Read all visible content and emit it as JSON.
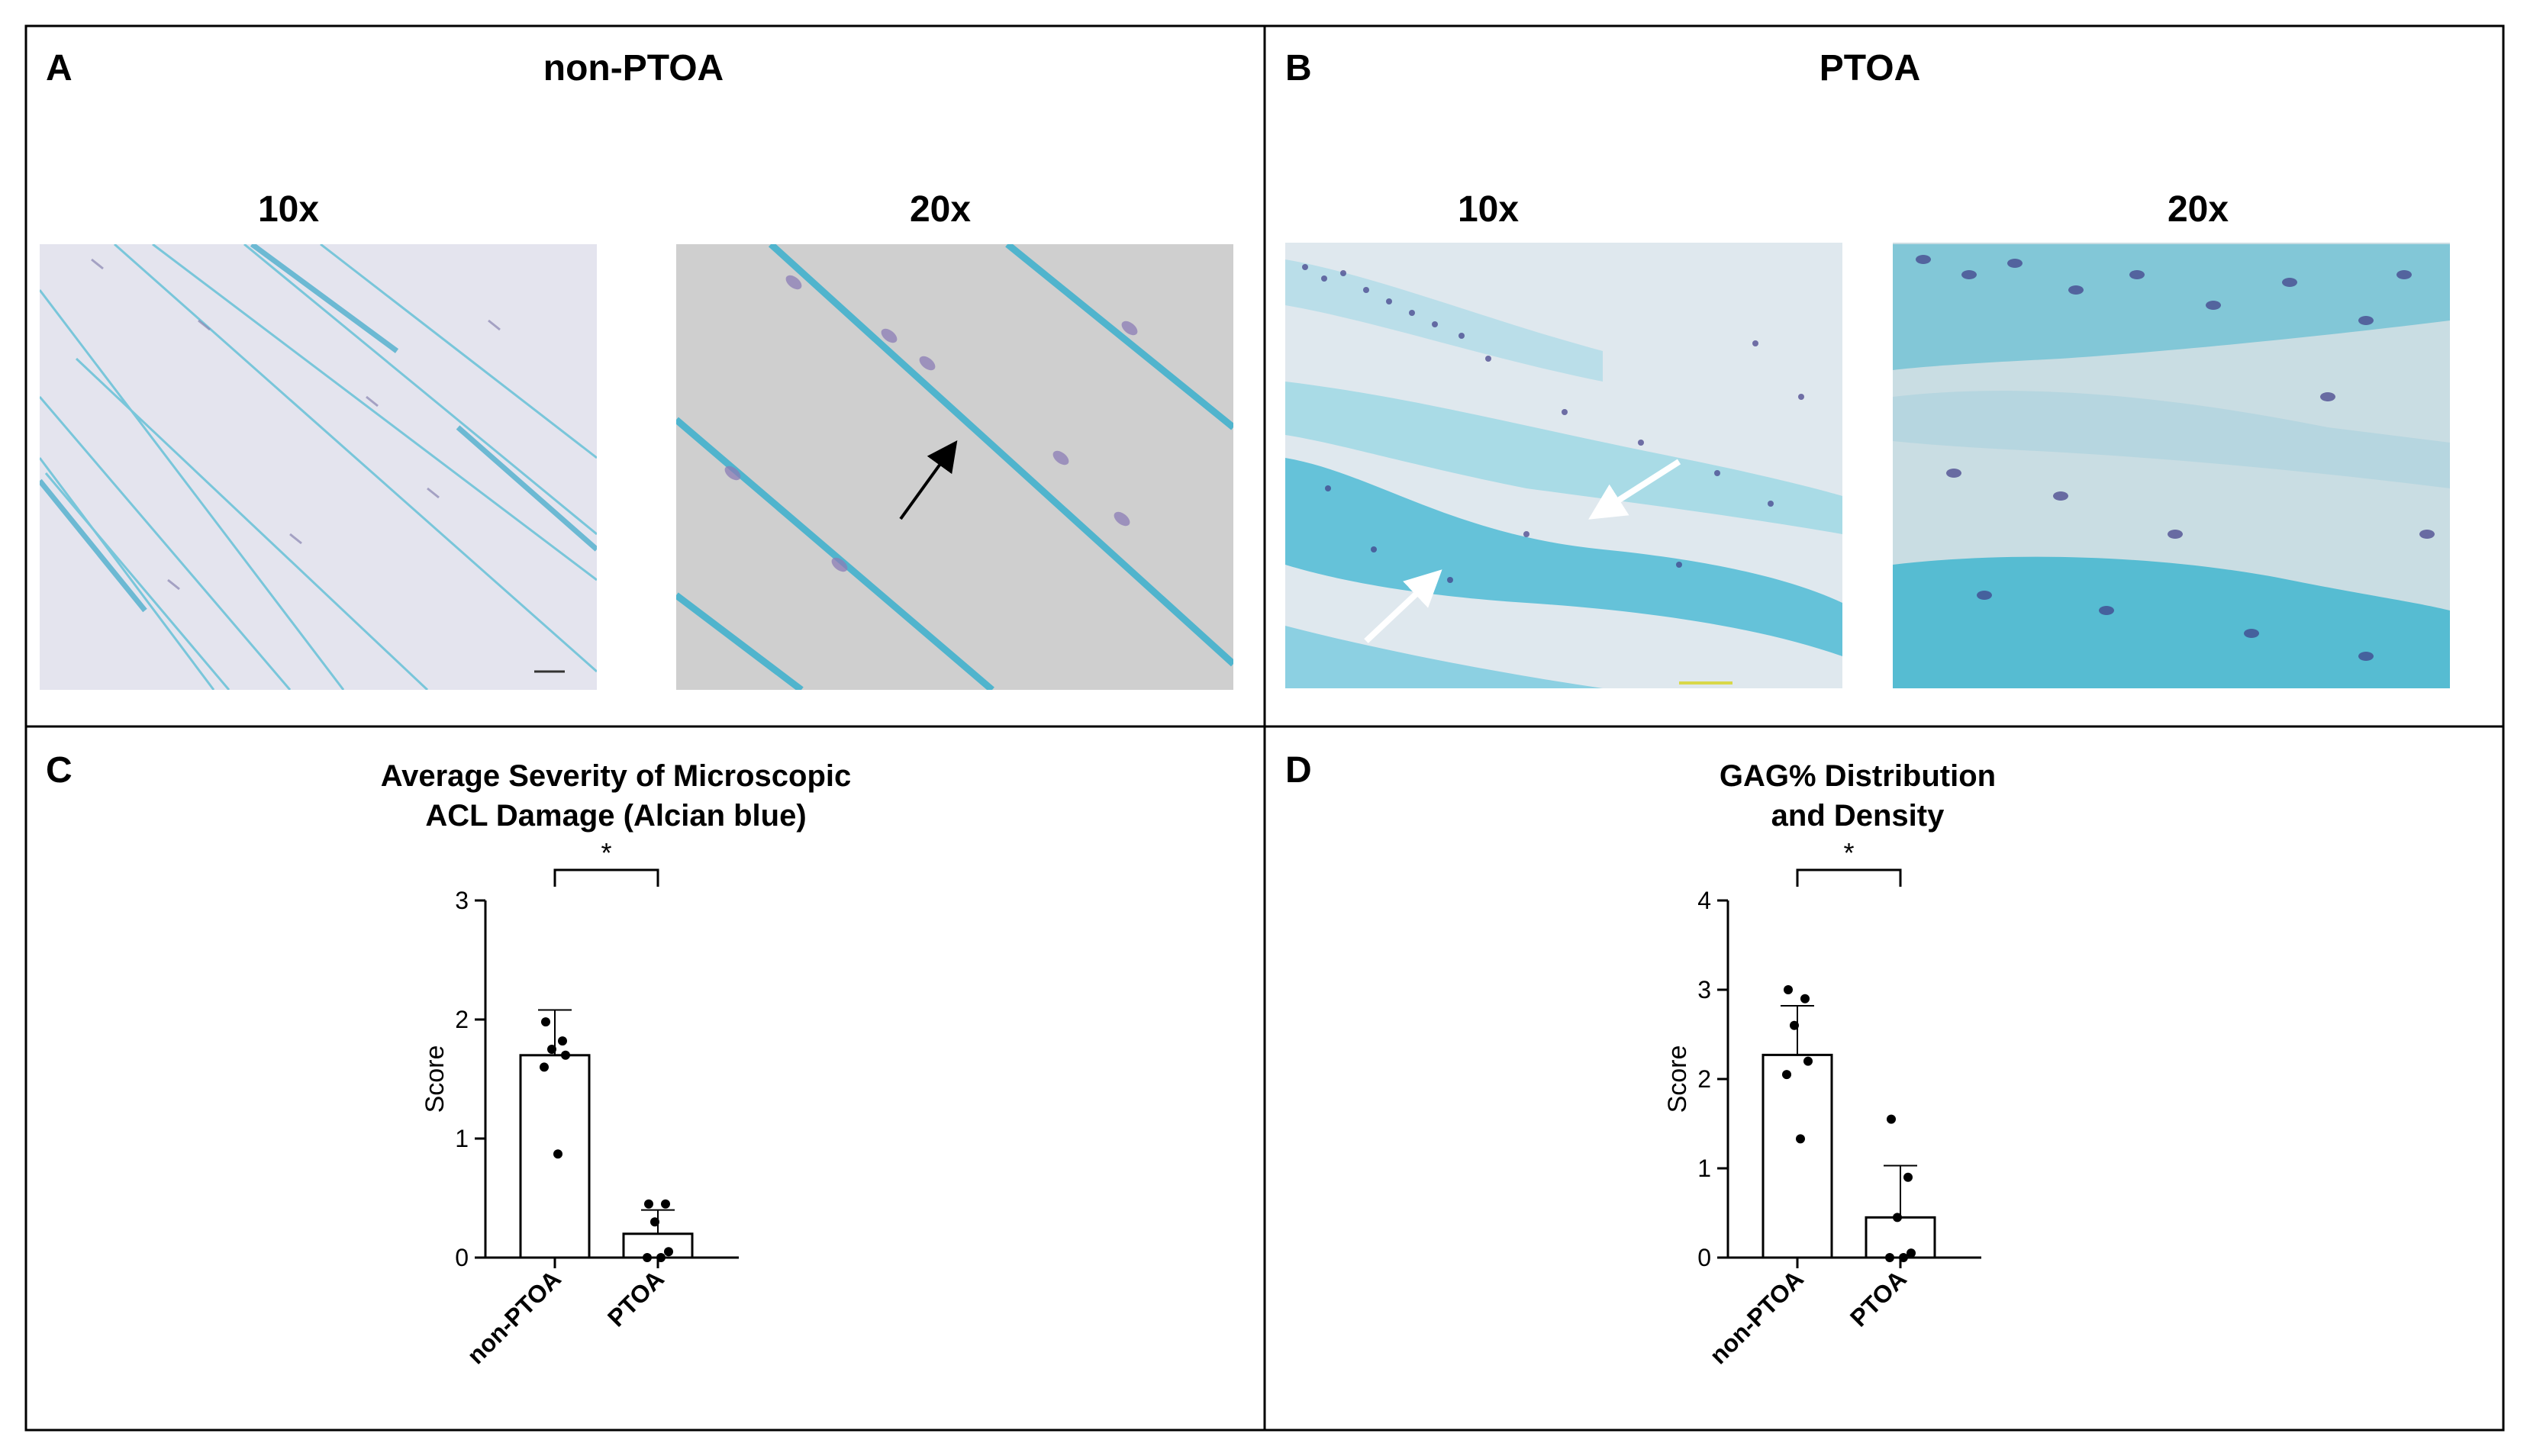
{
  "panels": {
    "A": {
      "letter": "A",
      "title": "non-PTOA",
      "mag_left": "10x",
      "mag_right": "20x"
    },
    "B": {
      "letter": "B",
      "title": "PTOA",
      "mag_left": "10x",
      "mag_right": "20x"
    },
    "C": {
      "letter": "C"
    },
    "D": {
      "letter": "D"
    }
  },
  "colors": {
    "stain_light": "#e6e6f0",
    "alcian_blue": "#4db8d2",
    "nuclei": "#4a3a8c",
    "border": "#000000"
  },
  "chart_data": [
    {
      "type": "bar",
      "title_lines": [
        "Average Severity of Microscopic",
        "ACL Damage (Alcian blue)"
      ],
      "xlabel": "",
      "ylabel": "Score",
      "categories": [
        "non-PTOA",
        "PTOA"
      ],
      "values": [
        1.7,
        0.2
      ],
      "error_sd": [
        0.38,
        0.2
      ],
      "points": [
        [
          1.98,
          1.82,
          1.75,
          1.7,
          1.6,
          0.87
        ],
        [
          0.45,
          0.45,
          0.3,
          0.05,
          0.0,
          0.0
        ]
      ],
      "ylim": [
        0,
        3
      ],
      "yticks": [
        0,
        1,
        2,
        3
      ],
      "significance": "*",
      "grid": false
    },
    {
      "type": "bar",
      "title_lines": [
        "GAG% Distribution",
        "and Density"
      ],
      "xlabel": "",
      "ylabel": "Score",
      "categories": [
        "non-PTOA",
        "PTOA"
      ],
      "values": [
        2.27,
        0.45
      ],
      "error_sd": [
        0.55,
        0.58
      ],
      "points": [
        [
          3.0,
          2.9,
          2.6,
          2.2,
          2.05,
          1.33
        ],
        [
          1.55,
          0.9,
          0.45,
          0.05,
          0.0,
          0.0
        ]
      ],
      "ylim": [
        0,
        4
      ],
      "yticks": [
        0,
        1,
        2,
        3,
        4
      ],
      "significance": "*",
      "grid": false
    }
  ]
}
